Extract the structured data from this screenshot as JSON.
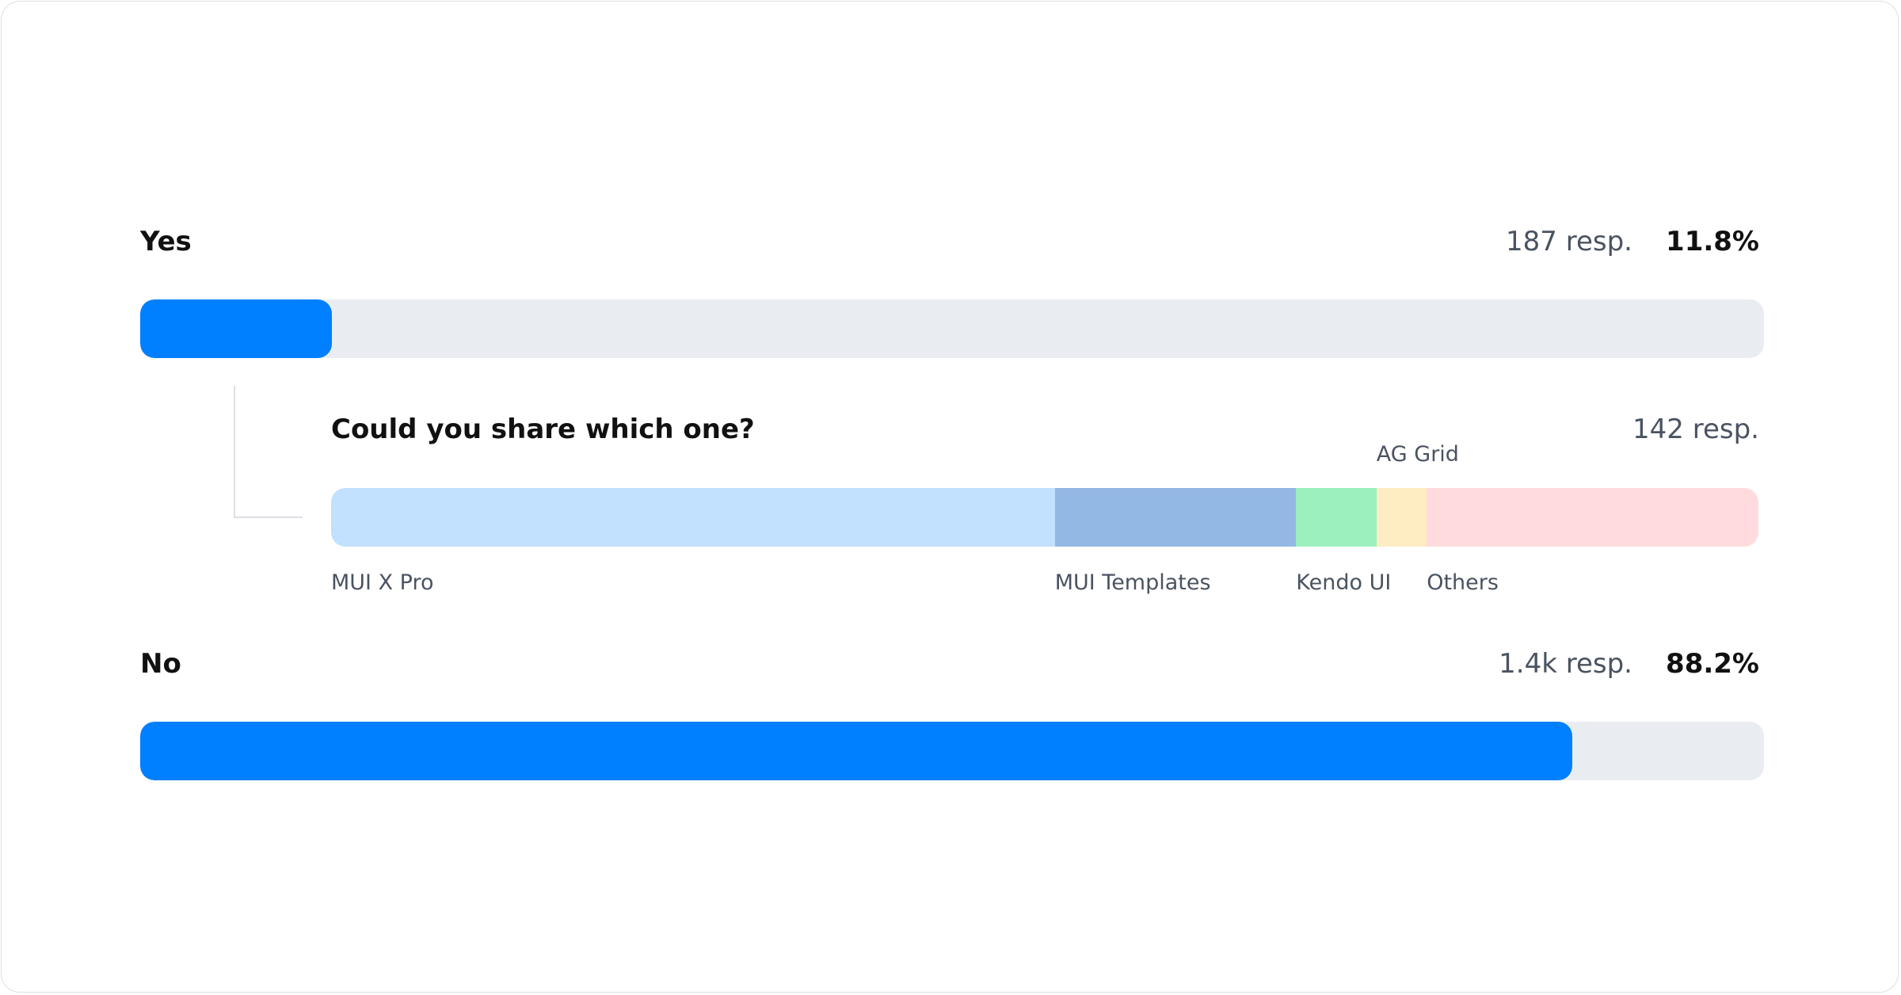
{
  "options": [
    {
      "label": "Yes",
      "responses": "187 resp.",
      "percent_label": "11.8%",
      "percent": 11.8
    },
    {
      "label": "No",
      "responses": "1.4k resp.",
      "percent_label": "88.2%",
      "percent": 88.2
    }
  ],
  "followup": {
    "question": "Could you share which one?",
    "responses": "142 resp.",
    "segments": [
      {
        "label": "MUI X Pro",
        "value": 72,
        "color": "#c2e0ff"
      },
      {
        "label": "MUI Templates",
        "value": 24,
        "color": "#94b8e4"
      },
      {
        "label": "Kendo UI",
        "value": 8,
        "color": "#9cf0bd"
      },
      {
        "label": "AG Grid",
        "value": 5,
        "color": "#feecc2"
      },
      {
        "label": "Others",
        "value": 33,
        "color": "#ffdbdd"
      }
    ]
  },
  "colors": {
    "accent": "#007fff",
    "track": "#e9edf2"
  }
}
